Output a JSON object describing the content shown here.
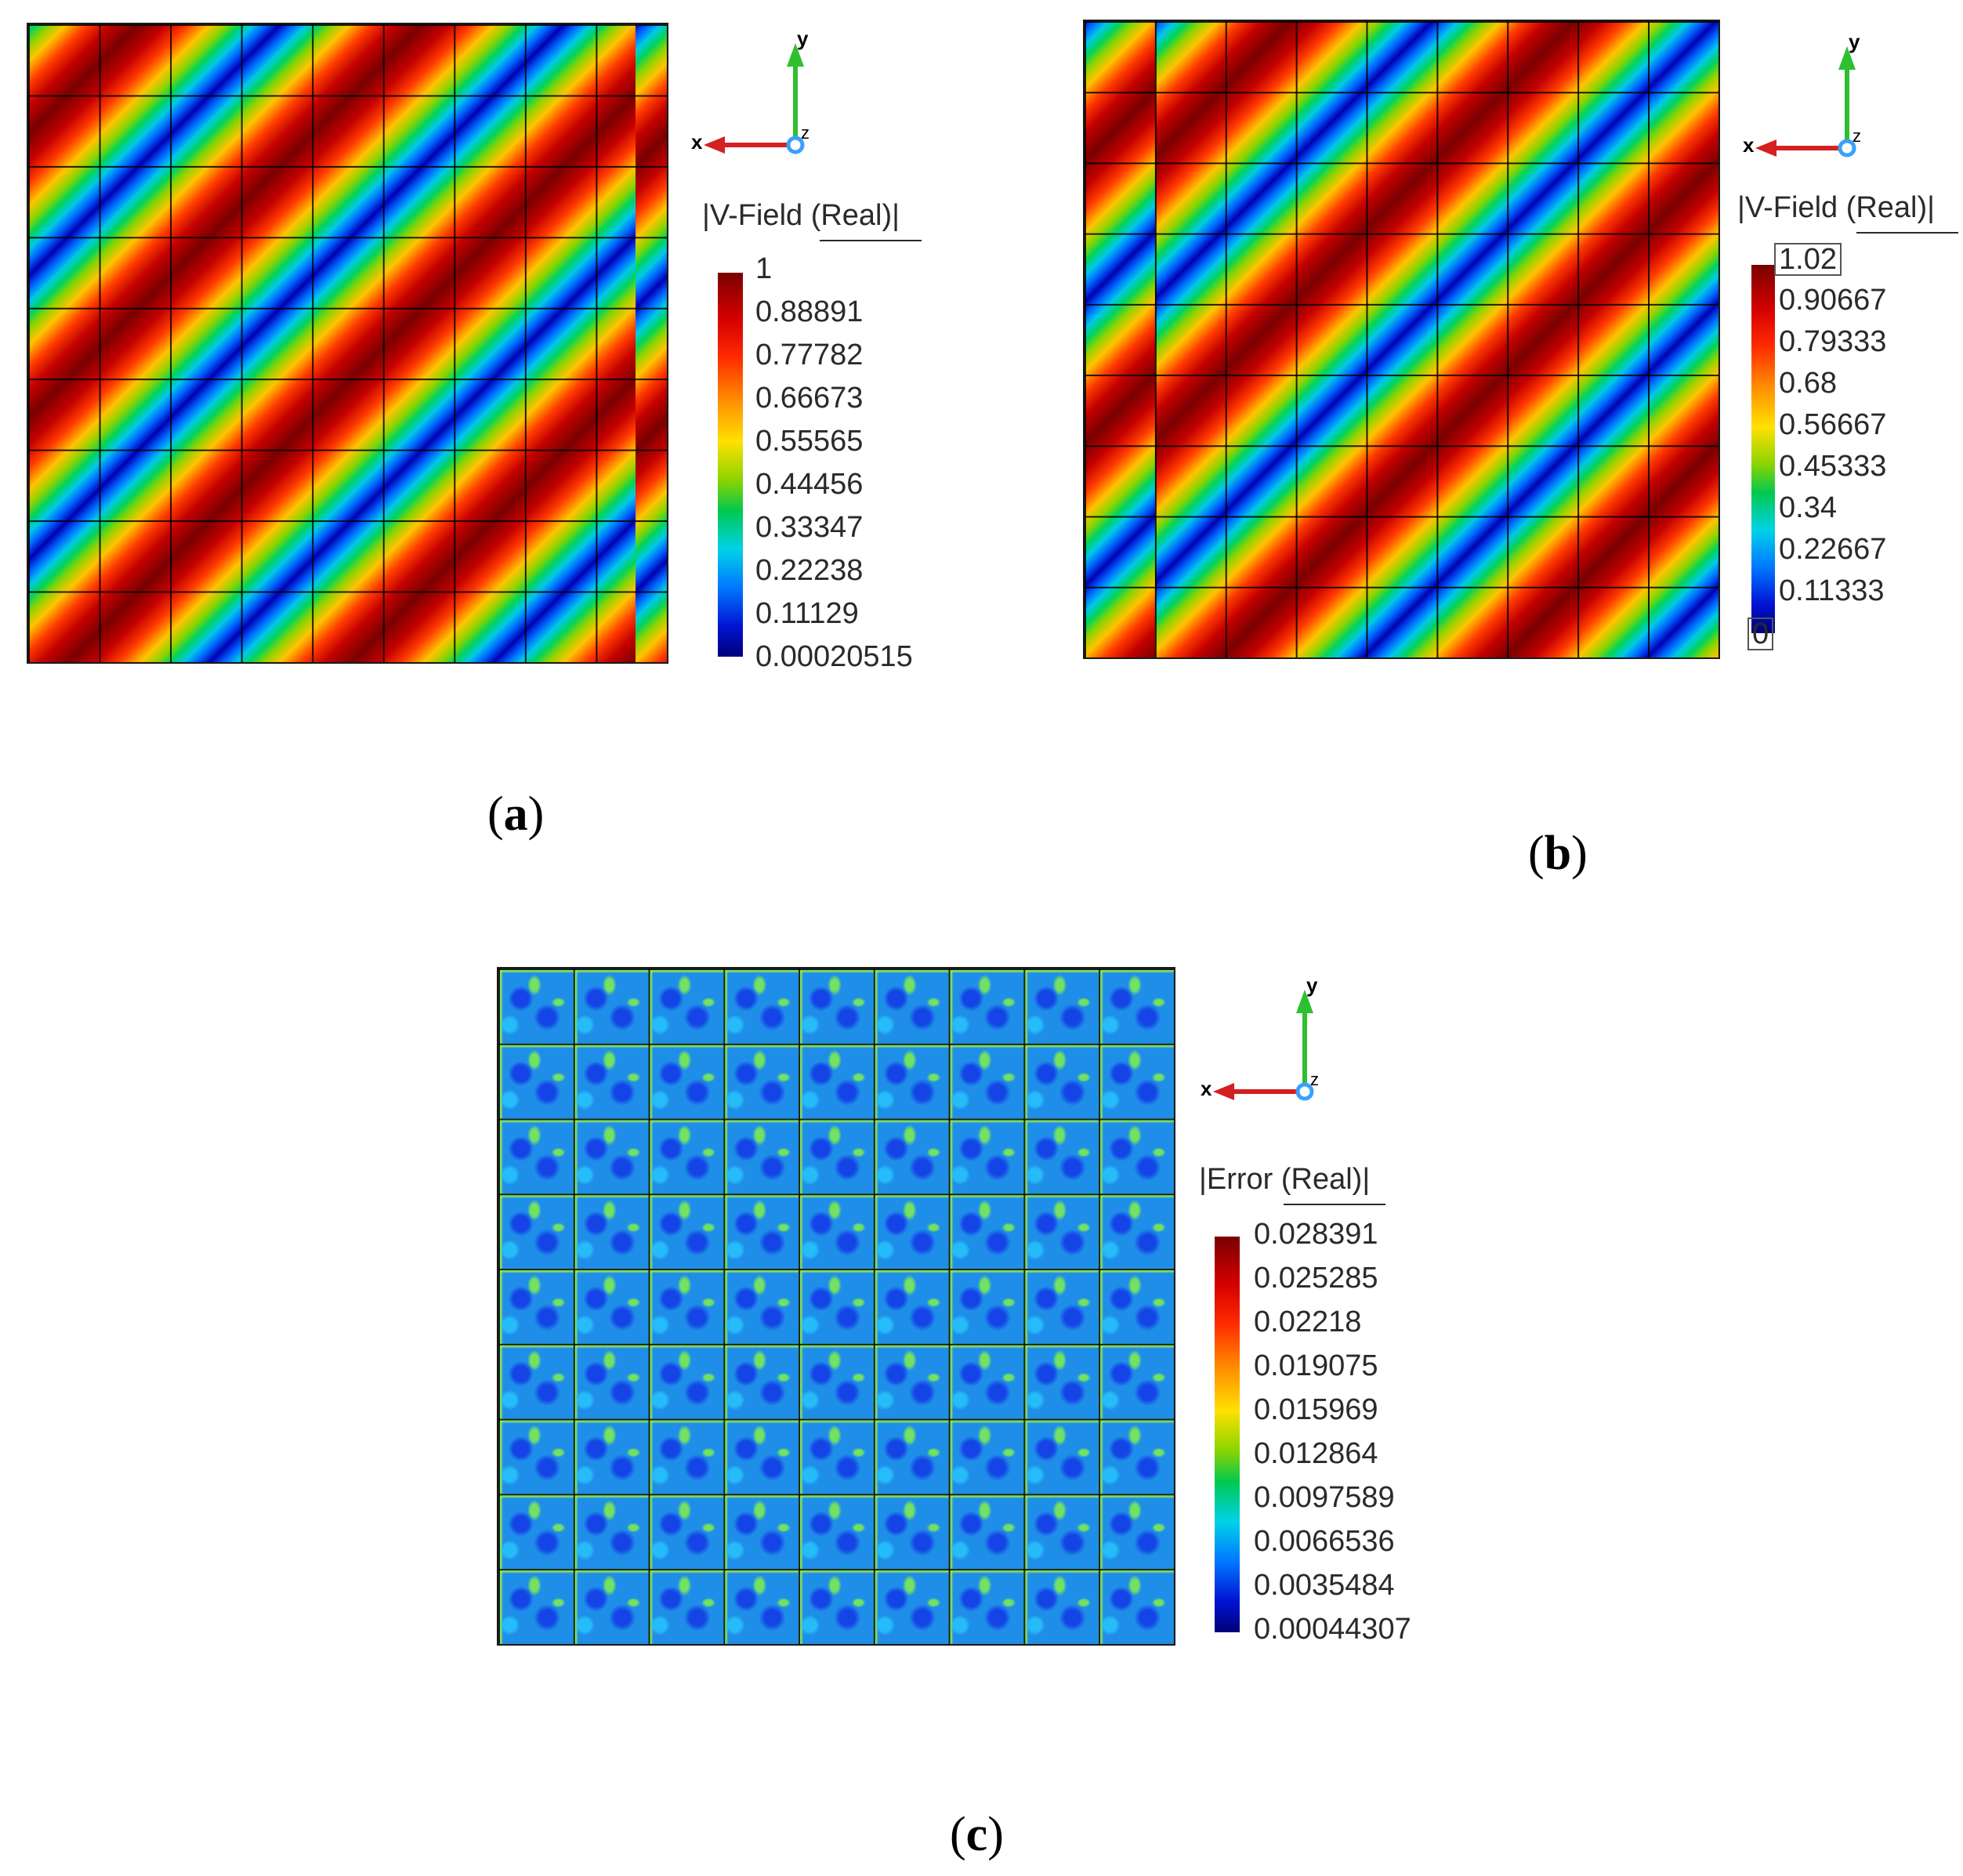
{
  "panels": [
    {
      "label": "a",
      "legend_title": "|V-Field (Real)|",
      "ticks": [
        "1",
        "0.88891",
        "0.77782",
        "0.66673",
        "0.55565",
        "0.44456",
        "0.33347",
        "0.22238",
        "0.11129",
        "0.00020515"
      ],
      "axes": {
        "x": "x",
        "y": "y",
        "z": "z"
      }
    },
    {
      "label": "b",
      "legend_title": "|V-Field (Real)|",
      "ticks": [
        "1.02",
        "0.90667",
        "0.79333",
        "0.68",
        "0.56667",
        "0.45333",
        "0.34",
        "0.22667",
        "0.11333",
        "0"
      ],
      "axes": {
        "x": "x",
        "y": "y",
        "z": "z"
      }
    },
    {
      "label": "c",
      "legend_title": "|Error (Real)|",
      "ticks": [
        "0.028391",
        "0.025285",
        "0.02218",
        "0.019075",
        "0.015969",
        "0.012864",
        "0.0097589",
        "0.0066536",
        "0.0035484",
        "0.00044307"
      ],
      "axes": {
        "x": "x",
        "y": "y",
        "z": "z"
      }
    }
  ],
  "colors": {
    "axis_x": "#d42020",
    "axis_y": "#2ec02e",
    "axis_z": "#3aa0ff"
  }
}
